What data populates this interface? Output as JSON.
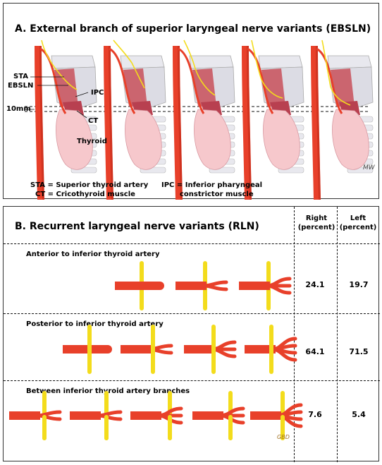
{
  "panel_a": {
    "title": "A.  External branch of superior laryngeal nerve variants (EBSLN)",
    "labels": {
      "sta": "STA",
      "ebsln": "EBSLN",
      "ipc": "IPC",
      "mm": "10mm",
      "ct": "CT",
      "thyroid": "Thyroid"
    },
    "legend": {
      "sta_def": "STA = Superior thyroid artery",
      "ct_def": "CT = Cricothyroid muscle",
      "ipc_def_1": "IPC = Inferior pharyngeal",
      "ipc_def_2": "constrictor muscle"
    },
    "signature": "MW"
  },
  "panel_b": {
    "title": "B.  Recurrent laryngeal nerve variants (RLN)",
    "col_right": "Right (percent)",
    "col_left": "Left (percent)",
    "rows": [
      {
        "label": "Anterior to inferior thyroid artery",
        "right": "24.1",
        "left": "19.7"
      },
      {
        "label": "Posterior to inferior thyroid artery",
        "right": "64.1",
        "left": "71.5"
      },
      {
        "label": "Between inferior thyroid artery branches",
        "right": "7.6",
        "left": "5.4"
      }
    ],
    "signature": "GBD"
  },
  "colors": {
    "artery": "#e8402a",
    "artery_dark": "#b82414",
    "nerve": "#f3dc1c",
    "thyroid": "#f6c8cc",
    "cartilage": "#e8e8ee",
    "muscle": "#c8505a"
  }
}
